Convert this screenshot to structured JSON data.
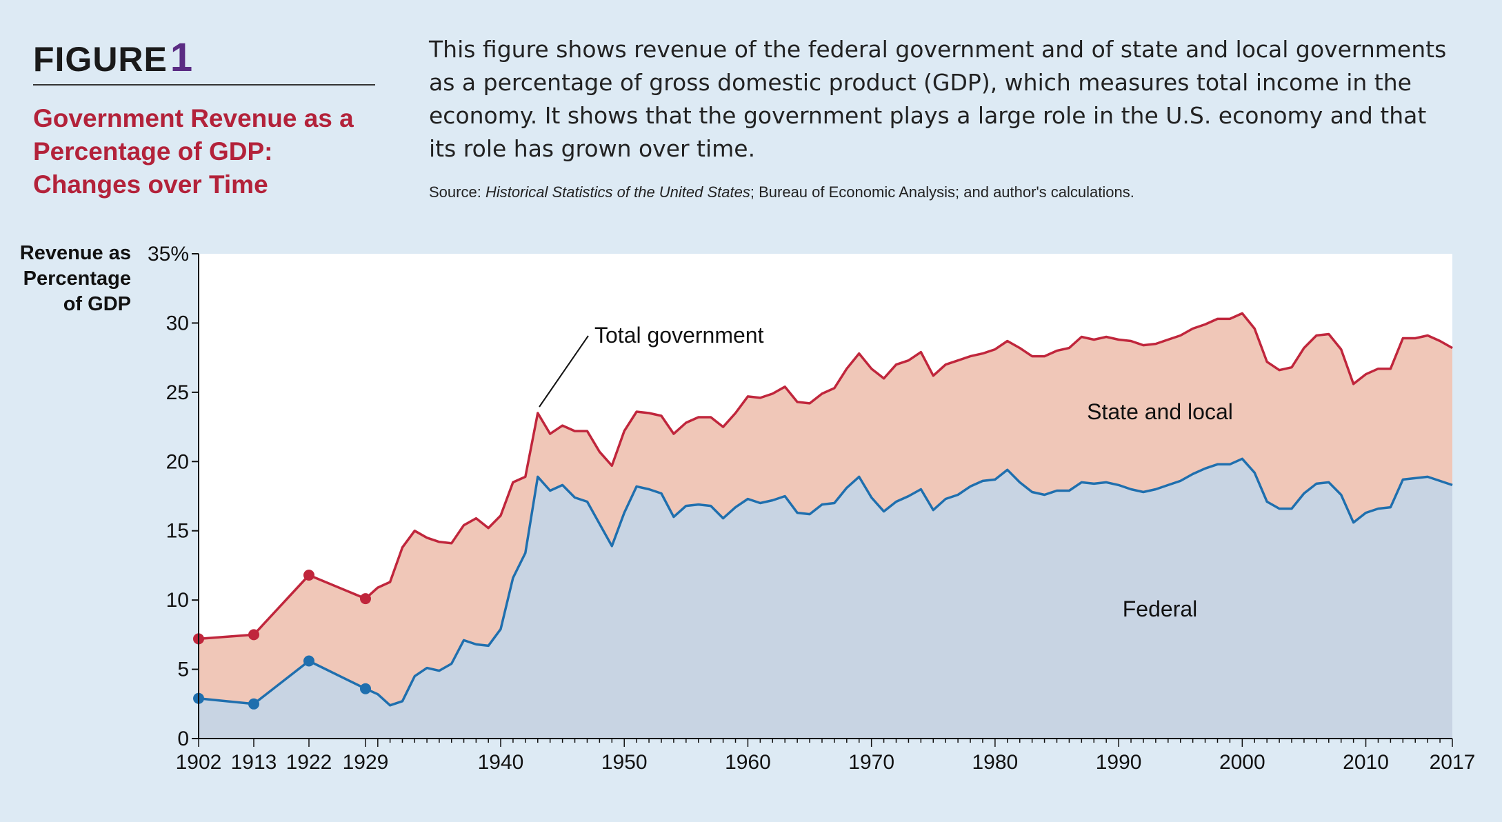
{
  "figure": {
    "label": "FIGURE",
    "number": "1",
    "title": "Government Revenue as a Percentage of GDP: Changes over Time",
    "description": "This figure shows revenue of the federal government and of state and local governments as a percentage of gross domestic product (GDP), which measures total income in the economy. It shows that the government plays a large role in the U.S. economy and that its role has grown over time.",
    "source_prefix": "Source: ",
    "source_italic": "Historical Statistics of the United States",
    "source_rest": "; Bureau of Economic Analysis; and author's calculations."
  },
  "colors": {
    "panel_bg": "#ddeaf4",
    "plot_bg": "#ffffff",
    "total_line": "#c0263c",
    "federal_line": "#1f6fae",
    "state_local_fill": "#f0c7b8",
    "federal_fill": "#c8d4e3"
  },
  "chart_data": {
    "type": "area",
    "ylabel_lines": [
      "Revenue as",
      "Percentage",
      "of GDP"
    ],
    "ylim": [
      0,
      35
    ],
    "xlim": [
      1902,
      2017
    ],
    "y_ticks": [
      0,
      5,
      10,
      15,
      20,
      25,
      30,
      35
    ],
    "y_tick_labels": [
      "0",
      "5",
      "10",
      "15",
      "20",
      "25",
      "30",
      "35%"
    ],
    "x_ticks": [
      1902,
      1913,
      1922,
      1929,
      1940,
      1950,
      1960,
      1970,
      1980,
      1990,
      2000,
      2010,
      2017
    ],
    "x_tick_labels": [
      "1902",
      "1913",
      "1922",
      "1929",
      "1940",
      "1950",
      "1960",
      "1970",
      "1980",
      "1990",
      "2000",
      "2010",
      "2017"
    ],
    "grid": false,
    "x_categories": "compressed-early-years",
    "annotations": {
      "total": "Total government",
      "state_local": "State and local",
      "federal": "Federal"
    },
    "marker_years": [
      1902,
      1913,
      1922,
      1929
    ],
    "series": [
      {
        "name": "Total government",
        "points": [
          [
            1902,
            7.2
          ],
          [
            1913,
            7.5
          ],
          [
            1922,
            11.8
          ],
          [
            1929,
            10.1
          ],
          [
            1930,
            10.9
          ],
          [
            1931,
            11.3
          ],
          [
            1932,
            13.8
          ],
          [
            1933,
            15.0
          ],
          [
            1934,
            14.5
          ],
          [
            1935,
            14.2
          ],
          [
            1936,
            14.1
          ],
          [
            1937,
            15.4
          ],
          [
            1938,
            15.9
          ],
          [
            1939,
            15.2
          ],
          [
            1940,
            16.1
          ],
          [
            1941,
            18.5
          ],
          [
            1942,
            18.9
          ],
          [
            1943,
            23.5
          ],
          [
            1944,
            22.0
          ],
          [
            1945,
            22.6
          ],
          [
            1946,
            22.2
          ],
          [
            1947,
            22.2
          ],
          [
            1948,
            20.7
          ],
          [
            1949,
            19.7
          ],
          [
            1950,
            22.2
          ],
          [
            1951,
            23.6
          ],
          [
            1952,
            23.5
          ],
          [
            1953,
            23.3
          ],
          [
            1954,
            22.0
          ],
          [
            1955,
            22.8
          ],
          [
            1956,
            23.2
          ],
          [
            1957,
            23.2
          ],
          [
            1958,
            22.5
          ],
          [
            1959,
            23.5
          ],
          [
            1960,
            24.7
          ],
          [
            1961,
            24.6
          ],
          [
            1962,
            24.9
          ],
          [
            1963,
            25.4
          ],
          [
            1964,
            24.3
          ],
          [
            1965,
            24.2
          ],
          [
            1966,
            24.9
          ],
          [
            1967,
            25.3
          ],
          [
            1968,
            26.7
          ],
          [
            1969,
            27.8
          ],
          [
            1970,
            26.7
          ],
          [
            1971,
            26.0
          ],
          [
            1972,
            27.0
          ],
          [
            1973,
            27.3
          ],
          [
            1974,
            27.9
          ],
          [
            1975,
            26.2
          ],
          [
            1976,
            27.0
          ],
          [
            1977,
            27.3
          ],
          [
            1978,
            27.6
          ],
          [
            1979,
            27.8
          ],
          [
            1980,
            28.1
          ],
          [
            1981,
            28.7
          ],
          [
            1982,
            28.2
          ],
          [
            1983,
            27.6
          ],
          [
            1984,
            27.6
          ],
          [
            1985,
            28.0
          ],
          [
            1986,
            28.2
          ],
          [
            1987,
            29.0
          ],
          [
            1988,
            28.8
          ],
          [
            1989,
            29.0
          ],
          [
            1990,
            28.8
          ],
          [
            1991,
            28.7
          ],
          [
            1992,
            28.4
          ],
          [
            1993,
            28.5
          ],
          [
            1994,
            28.8
          ],
          [
            1995,
            29.1
          ],
          [
            1996,
            29.6
          ],
          [
            1997,
            29.9
          ],
          [
            1998,
            30.3
          ],
          [
            1999,
            30.3
          ],
          [
            2000,
            30.7
          ],
          [
            2001,
            29.6
          ],
          [
            2002,
            27.2
          ],
          [
            2003,
            26.6
          ],
          [
            2004,
            26.8
          ],
          [
            2005,
            28.2
          ],
          [
            2006,
            29.1
          ],
          [
            2007,
            29.2
          ],
          [
            2008,
            28.1
          ],
          [
            2009,
            25.6
          ],
          [
            2010,
            26.3
          ],
          [
            2011,
            26.7
          ],
          [
            2012,
            26.7
          ],
          [
            2013,
            28.9
          ],
          [
            2014,
            28.9
          ],
          [
            2015,
            29.1
          ],
          [
            2016,
            28.7
          ],
          [
            2017,
            28.2
          ]
        ]
      },
      {
        "name": "Federal",
        "points": [
          [
            1902,
            2.9
          ],
          [
            1913,
            2.5
          ],
          [
            1922,
            5.6
          ],
          [
            1929,
            3.6
          ],
          [
            1930,
            3.2
          ],
          [
            1931,
            2.4
          ],
          [
            1932,
            2.7
          ],
          [
            1933,
            4.5
          ],
          [
            1934,
            5.1
          ],
          [
            1935,
            4.9
          ],
          [
            1936,
            5.4
          ],
          [
            1937,
            7.1
          ],
          [
            1938,
            6.8
          ],
          [
            1939,
            6.7
          ],
          [
            1940,
            7.9
          ],
          [
            1941,
            11.6
          ],
          [
            1942,
            13.4
          ],
          [
            1943,
            18.9
          ],
          [
            1944,
            17.9
          ],
          [
            1945,
            18.3
          ],
          [
            1946,
            17.4
          ],
          [
            1947,
            17.1
          ],
          [
            1948,
            15.5
          ],
          [
            1949,
            13.9
          ],
          [
            1950,
            16.3
          ],
          [
            1951,
            18.2
          ],
          [
            1952,
            18.0
          ],
          [
            1953,
            17.7
          ],
          [
            1954,
            16.0
          ],
          [
            1955,
            16.8
          ],
          [
            1956,
            16.9
          ],
          [
            1957,
            16.8
          ],
          [
            1958,
            15.9
          ],
          [
            1959,
            16.7
          ],
          [
            1960,
            17.3
          ],
          [
            1961,
            17.0
          ],
          [
            1962,
            17.2
          ],
          [
            1963,
            17.5
          ],
          [
            1964,
            16.3
          ],
          [
            1965,
            16.2
          ],
          [
            1966,
            16.9
          ],
          [
            1967,
            17.0
          ],
          [
            1968,
            18.1
          ],
          [
            1969,
            18.9
          ],
          [
            1970,
            17.4
          ],
          [
            1971,
            16.4
          ],
          [
            1972,
            17.1
          ],
          [
            1973,
            17.5
          ],
          [
            1974,
            18.0
          ],
          [
            1975,
            16.5
          ],
          [
            1976,
            17.3
          ],
          [
            1977,
            17.6
          ],
          [
            1978,
            18.2
          ],
          [
            1979,
            18.6
          ],
          [
            1980,
            18.7
          ],
          [
            1981,
            19.4
          ],
          [
            1982,
            18.5
          ],
          [
            1983,
            17.8
          ],
          [
            1984,
            17.6
          ],
          [
            1985,
            17.9
          ],
          [
            1986,
            17.9
          ],
          [
            1987,
            18.5
          ],
          [
            1988,
            18.4
          ],
          [
            1989,
            18.5
          ],
          [
            1990,
            18.3
          ],
          [
            1991,
            18.0
          ],
          [
            1992,
            17.8
          ],
          [
            1993,
            18.0
          ],
          [
            1994,
            18.3
          ],
          [
            1995,
            18.6
          ],
          [
            1996,
            19.1
          ],
          [
            1997,
            19.5
          ],
          [
            1998,
            19.8
          ],
          [
            1999,
            19.8
          ],
          [
            2000,
            20.2
          ],
          [
            2001,
            19.2
          ],
          [
            2002,
            17.1
          ],
          [
            2003,
            16.6
          ],
          [
            2004,
            16.6
          ],
          [
            2005,
            17.7
          ],
          [
            2006,
            18.4
          ],
          [
            2007,
            18.5
          ],
          [
            2008,
            17.6
          ],
          [
            2009,
            15.6
          ],
          [
            2010,
            16.3
          ],
          [
            2011,
            16.6
          ],
          [
            2012,
            16.7
          ],
          [
            2013,
            18.7
          ],
          [
            2014,
            18.8
          ],
          [
            2015,
            18.9
          ],
          [
            2016,
            18.6
          ],
          [
            2017,
            18.3
          ]
        ]
      }
    ]
  }
}
